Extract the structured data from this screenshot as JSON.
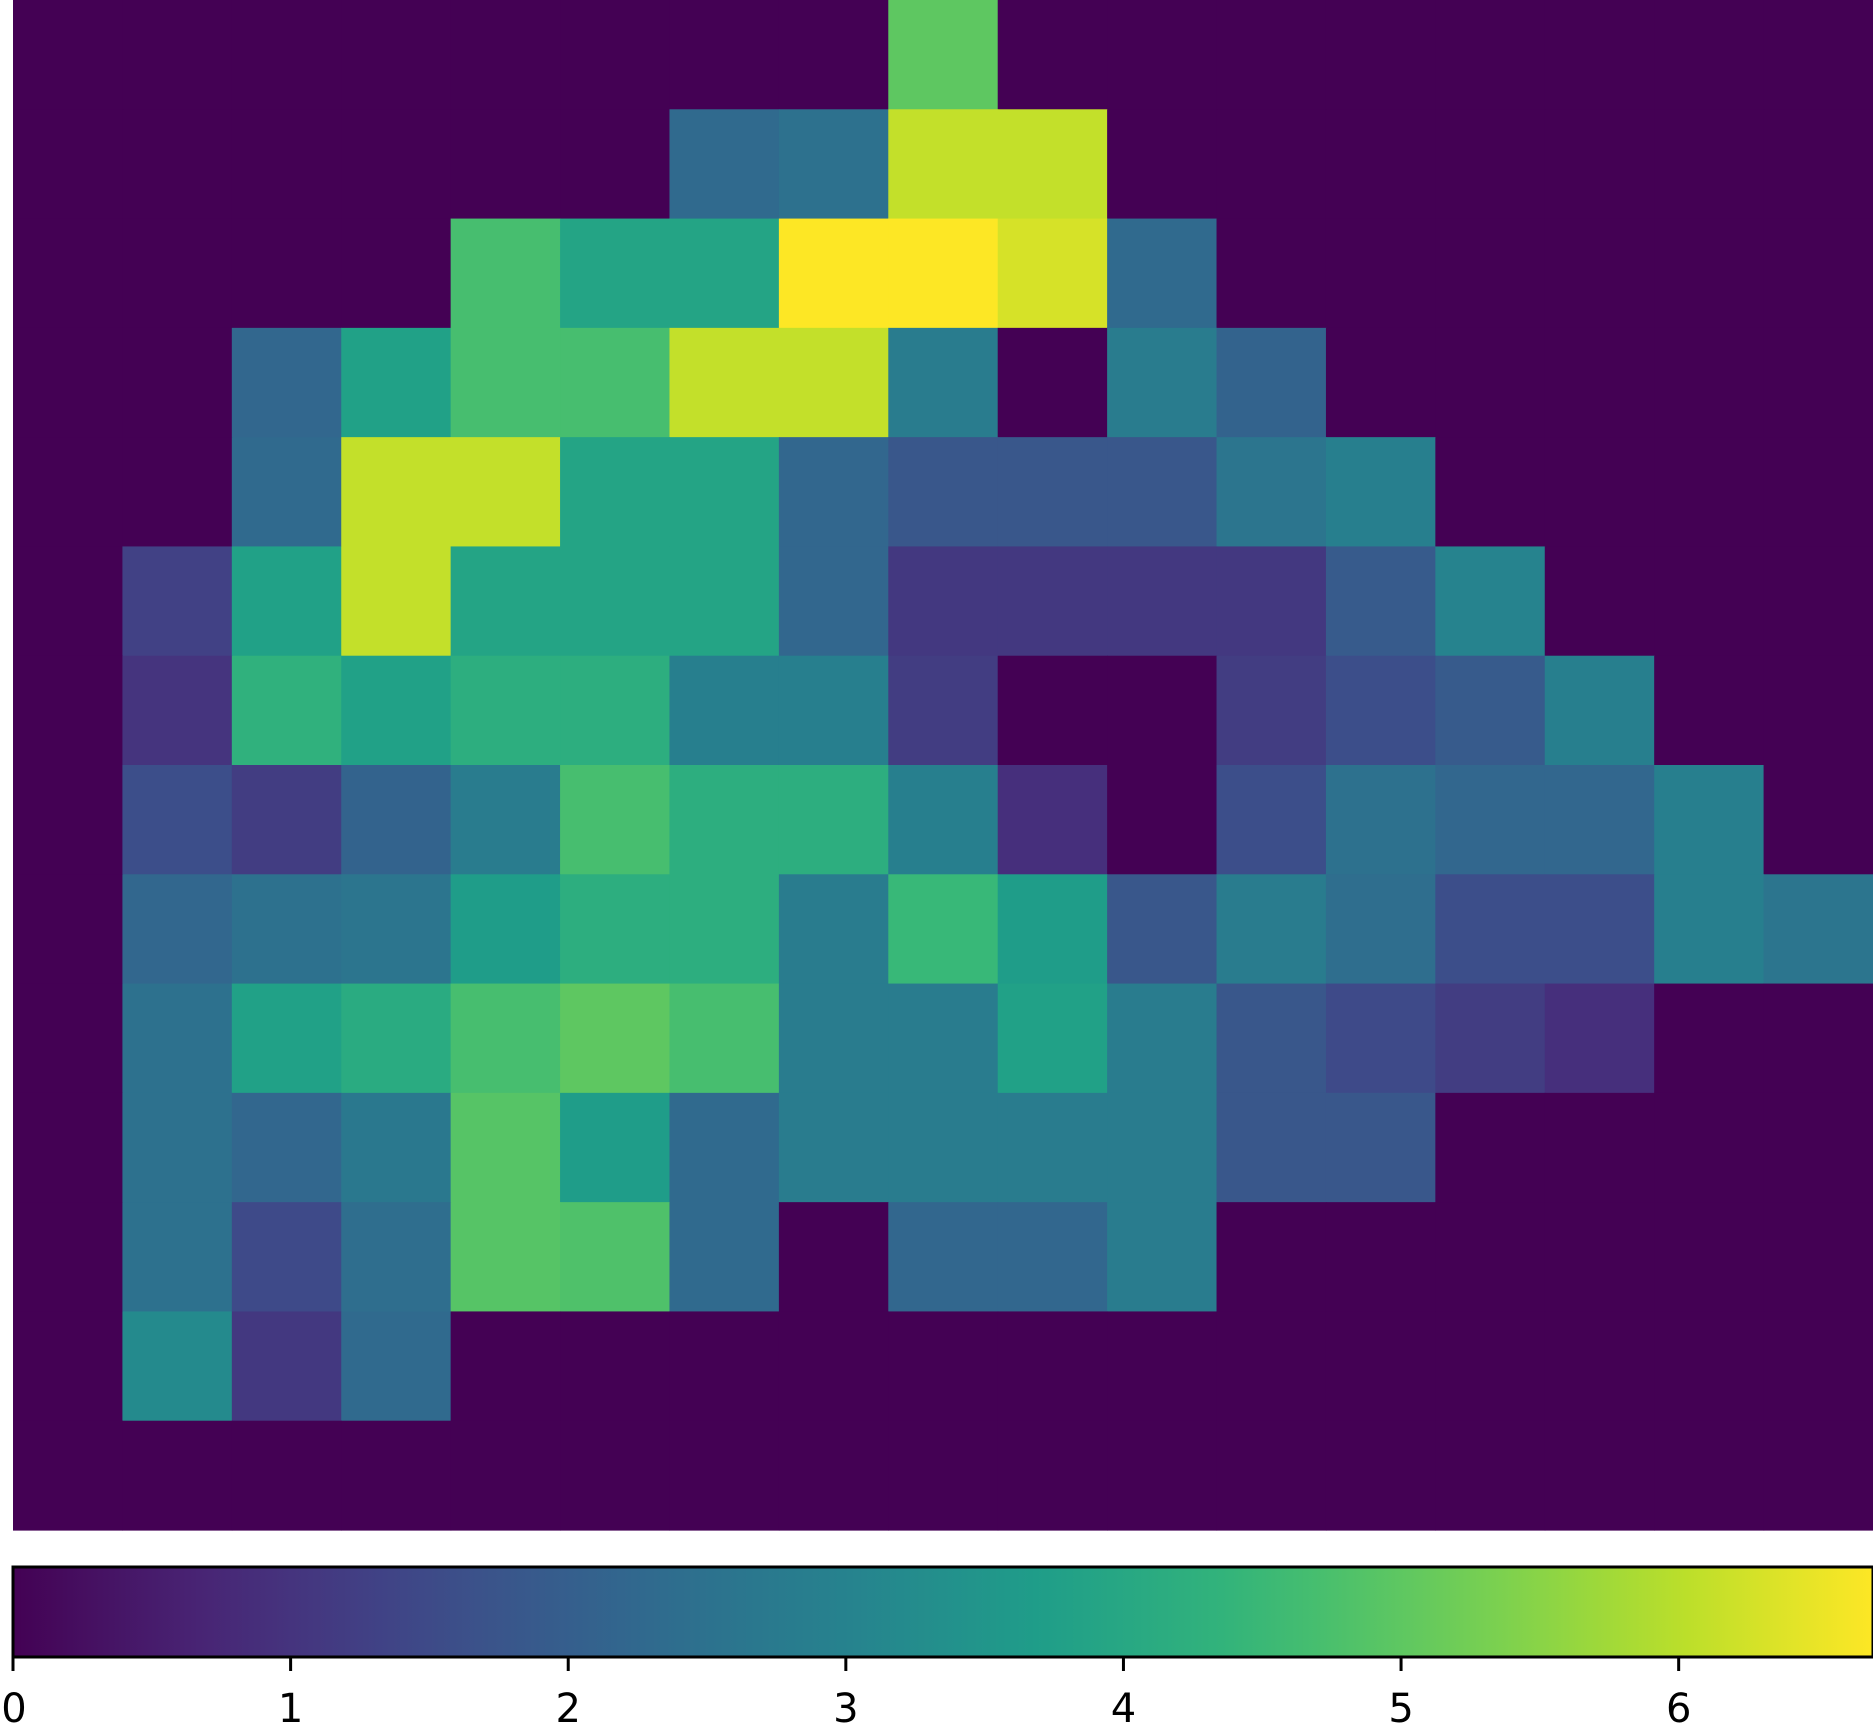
{
  "chart_data": {
    "type": "heatmap",
    "title": "",
    "xlabel": "",
    "ylabel": "",
    "colormap": "viridis",
    "grid": false,
    "vmin": 0,
    "vmax": 6.7,
    "n_rows": 14,
    "n_cols": 17,
    "values": [
      [
        0,
        0,
        0,
        0,
        0,
        0,
        0,
        0,
        5.0,
        0,
        0,
        0,
        0,
        0,
        0,
        0,
        0
      ],
      [
        0,
        0,
        0,
        0,
        0,
        0,
        2.3,
        2.5,
        6.1,
        6.1,
        0,
        0,
        0,
        0,
        0,
        0,
        0
      ],
      [
        0,
        0,
        0,
        0,
        4.7,
        3.9,
        3.9,
        6.7,
        6.7,
        6.3,
        2.3,
        0,
        0,
        0,
        0,
        0,
        0
      ],
      [
        0,
        0,
        2.2,
        3.8,
        4.7,
        4.7,
        6.1,
        6.1,
        2.8,
        0,
        2.8,
        2.1,
        0,
        0,
        0,
        0,
        0
      ],
      [
        0,
        0,
        2.3,
        6.1,
        6.1,
        3.9,
        3.9,
        2.2,
        1.8,
        1.8,
        1.8,
        2.6,
        2.9,
        0,
        0,
        0,
        0
      ],
      [
        0,
        1.3,
        3.8,
        6.1,
        3.9,
        3.9,
        3.9,
        2.2,
        1.1,
        1.1,
        1.1,
        1.1,
        1.9,
        3.0,
        0,
        0,
        0
      ],
      [
        0,
        1.0,
        4.3,
        3.8,
        4.2,
        4.2,
        2.9,
        2.9,
        1.2,
        0,
        0,
        1.2,
        1.6,
        1.9,
        2.9,
        0,
        0
      ],
      [
        0,
        1.6,
        1.2,
        2.1,
        2.8,
        4.7,
        4.2,
        4.2,
        2.9,
        0.9,
        0,
        1.6,
        2.5,
        2.2,
        2.2,
        2.9,
        0
      ],
      [
        0,
        2.2,
        2.5,
        2.6,
        3.7,
        4.2,
        4.2,
        2.8,
        4.5,
        3.7,
        1.8,
        2.8,
        2.4,
        1.6,
        1.6,
        2.9,
        2.6
      ],
      [
        0,
        2.5,
        3.8,
        4.1,
        4.7,
        5.0,
        4.7,
        2.8,
        2.8,
        3.8,
        2.8,
        1.8,
        1.5,
        1.2,
        0.9,
        0,
        0
      ],
      [
        0,
        2.5,
        2.2,
        2.7,
        4.9,
        3.7,
        2.3,
        2.8,
        2.8,
        2.8,
        2.8,
        1.8,
        1.8,
        0,
        0,
        0,
        0
      ],
      [
        0,
        2.5,
        1.5,
        2.4,
        4.9,
        4.8,
        2.3,
        0,
        2.2,
        2.2,
        2.8,
        0,
        0,
        0,
        0,
        0,
        0
      ],
      [
        0,
        3.2,
        1.1,
        2.3,
        0,
        0,
        0,
        0,
        0,
        0,
        0,
        0,
        0,
        0,
        0,
        0,
        0
      ],
      [
        0,
        0,
        0,
        0,
        0,
        0,
        0,
        0,
        0,
        0,
        0,
        0,
        0,
        0,
        0,
        0,
        0
      ]
    ],
    "colorbar": {
      "orientation": "horizontal",
      "range": [
        0,
        6.7
      ],
      "ticks": [
        0,
        1,
        2,
        3,
        4,
        5,
        6
      ],
      "tick_labels": [
        "0",
        "1",
        "2",
        "3",
        "4",
        "5",
        "6"
      ]
    }
  }
}
